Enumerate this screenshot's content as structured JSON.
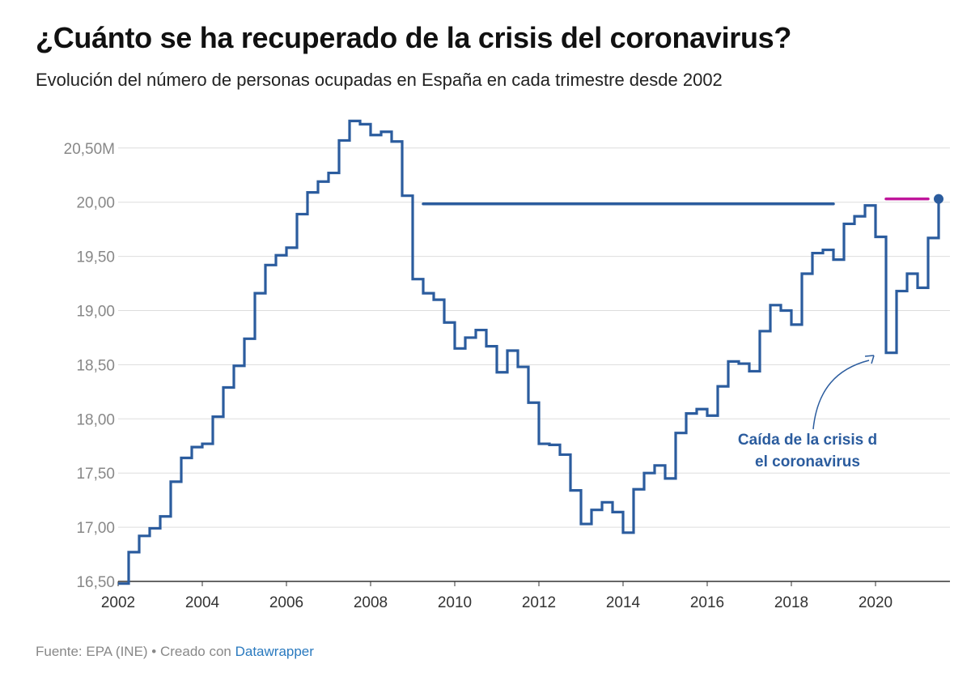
{
  "title": "¿Cuánto se ha recuperado de la crisis del coronavirus?",
  "subtitle": "Evolución del número de personas ocupadas en España en cada trimestre desde 2002",
  "footer": {
    "source": "Fuente: EPA (INE) • Creado con ",
    "link": "Datawrapper"
  },
  "colors": {
    "line": "#2b5c9e",
    "magenta": "#c0169b",
    "grid": "#dddddd",
    "axis": "#333333"
  },
  "chart_data": {
    "type": "line",
    "step": true,
    "ylim": [
      16.5,
      20.85
    ],
    "xlim": [
      2002,
      2021.75
    ],
    "yticks": [
      {
        "value": 16.5,
        "label": "16,50"
      },
      {
        "value": 17.0,
        "label": "17,00"
      },
      {
        "value": 17.5,
        "label": "17,50"
      },
      {
        "value": 18.0,
        "label": "18,00"
      },
      {
        "value": 18.5,
        "label": "18,50"
      },
      {
        "value": 19.0,
        "label": "19,00"
      },
      {
        "value": 19.5,
        "label": "19,50"
      },
      {
        "value": 20.0,
        "label": "20,00"
      },
      {
        "value": 20.5,
        "label": "20,50M"
      }
    ],
    "xticks": [
      {
        "value": 2002,
        "label": "2002"
      },
      {
        "value": 2004,
        "label": "2004"
      },
      {
        "value": 2006,
        "label": "2006"
      },
      {
        "value": 2008,
        "label": "2008"
      },
      {
        "value": 2010,
        "label": "2010"
      },
      {
        "value": 2012,
        "label": "2012"
      },
      {
        "value": 2014,
        "label": "2014"
      },
      {
        "value": 2016,
        "label": "2016"
      },
      {
        "value": 2018,
        "label": "2018"
      },
      {
        "value": 2020,
        "label": "2020"
      }
    ],
    "series": [
      {
        "x": [
          2002.0,
          2002.25,
          2002.5,
          2002.75,
          2003.0,
          2003.25,
          2003.5,
          2003.75,
          2004.0,
          2004.25,
          2004.5,
          2004.75,
          2005.0,
          2005.25,
          2005.5,
          2005.75,
          2006.0,
          2006.25,
          2006.5,
          2006.75,
          2007.0,
          2007.25,
          2007.5,
          2007.75,
          2008.0,
          2008.25,
          2008.5,
          2008.75,
          2009.0,
          2009.25,
          2009.5,
          2009.75,
          2010.0,
          2010.25,
          2010.5,
          2010.75,
          2011.0,
          2011.25,
          2011.5,
          2011.75,
          2012.0,
          2012.25,
          2012.5,
          2012.75,
          2013.0,
          2013.25,
          2013.5,
          2013.75,
          2014.0,
          2014.25,
          2014.5,
          2014.75,
          2015.0,
          2015.25,
          2015.5,
          2015.75,
          2016.0,
          2016.25,
          2016.5,
          2016.75,
          2017.0,
          2017.25,
          2017.5,
          2017.75,
          2018.0,
          2018.25,
          2018.5,
          2018.75,
          2019.0,
          2019.25,
          2019.5,
          2019.75,
          2020.0,
          2020.25,
          2020.5,
          2020.75,
          2021.0,
          2021.25,
          2021.5
        ],
        "values": [
          16.48,
          16.77,
          16.92,
          16.99,
          17.1,
          17.42,
          17.64,
          17.74,
          17.77,
          18.02,
          18.29,
          18.49,
          18.74,
          19.16,
          19.42,
          19.51,
          19.58,
          19.89,
          20.09,
          20.19,
          20.27,
          20.57,
          20.75,
          20.72,
          20.62,
          20.65,
          20.56,
          20.06,
          19.29,
          19.16,
          19.1,
          18.89,
          18.65,
          18.75,
          18.82,
          18.67,
          18.43,
          18.63,
          18.48,
          18.15,
          17.77,
          17.76,
          17.67,
          17.34,
          17.03,
          17.16,
          17.23,
          17.14,
          16.95,
          17.35,
          17.5,
          17.57,
          17.45,
          17.87,
          18.05,
          18.09,
          18.03,
          18.3,
          18.53,
          18.51,
          18.44,
          18.81,
          19.05,
          19.0,
          18.87,
          19.34,
          19.53,
          19.56,
          19.47,
          19.8,
          19.87,
          19.97,
          19.68,
          18.61,
          19.18,
          19.34,
          19.21,
          19.67,
          20.03
        ]
      }
    ],
    "reference_lines": [
      {
        "x1": 2009.25,
        "x2": 2019.0,
        "y": 19.985,
        "color": "line"
      },
      {
        "x1": 2020.25,
        "x2": 2021.25,
        "y": 20.03,
        "color": "magenta"
      }
    ],
    "last_point": {
      "x": 2021.5,
      "y": 20.03
    },
    "annotation": {
      "lines": [
        "Caída de la crisis d",
        "el coronavirus"
      ],
      "target": {
        "x": 2020.0,
        "y": 18.6
      }
    }
  }
}
